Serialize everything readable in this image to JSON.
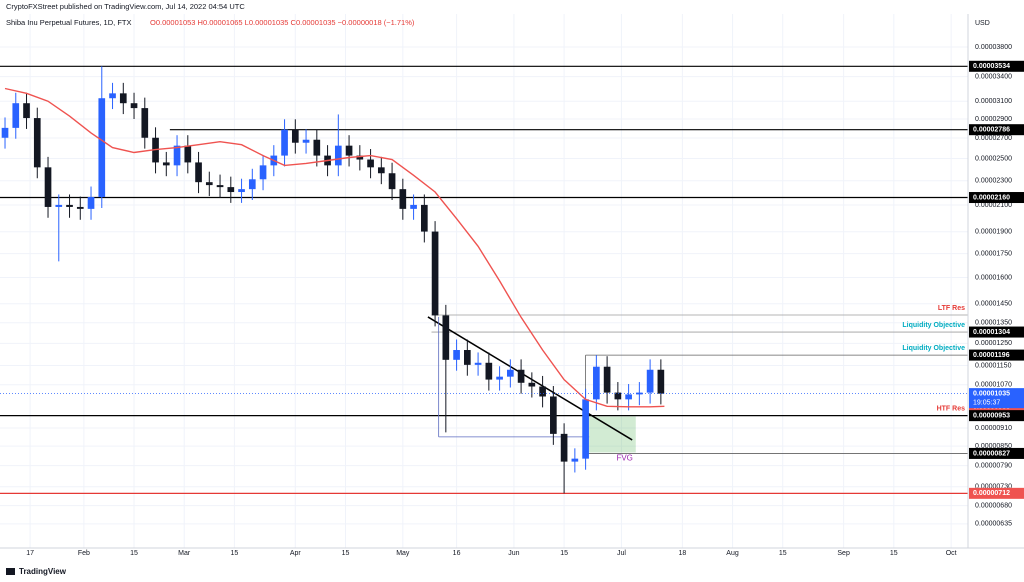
{
  "header": {
    "publisher": "CryptoFXStreet published on TradingView.com, Jul 14, 2022 04:54 UTC",
    "symbol": "Shiba Inu Perpetual Futures, 1D, FTX",
    "ohlc": "O0.00001053 H0.00001065 L0.00001035 C0.00001035 −0.00000018 (−1.71%)",
    "currency": "USD"
  },
  "footer": {
    "brand": "TradingView"
  },
  "chart_data": {
    "type": "candlestick",
    "log_scale": true,
    "grid": true,
    "up_color": "#2962ff",
    "down_color": "#131722",
    "xlim": [
      8.6,
      278.7
    ],
    "xticks": [
      17,
      {
        "value": 32,
        "label": "Feb"
      },
      {
        "value": 46,
        "label": "15"
      },
      {
        "value": 60,
        "label": "Mar"
      },
      {
        "value": 74,
        "label": "15"
      },
      {
        "value": 91,
        "label": "Apr"
      },
      {
        "value": 105,
        "label": "15"
      },
      {
        "value": 121,
        "label": "May"
      },
      {
        "value": 136,
        "label": "16"
      },
      {
        "value": 152,
        "label": "Jun"
      },
      {
        "value": 166,
        "label": "15"
      },
      {
        "value": 182,
        "label": "Jul"
      },
      {
        "value": 199,
        "label": "18"
      },
      {
        "value": 213,
        "label": "Aug"
      },
      {
        "value": 227,
        "label": "15"
      },
      {
        "value": 244,
        "label": "Sep"
      },
      {
        "value": 258,
        "label": "15"
      },
      {
        "value": 274,
        "label": "Oct"
      }
    ],
    "ylim": [
      5.8e-06,
      4.3e-05
    ],
    "yticks": [
      {
        "value": 3.8e-05,
        "label": "0.00003800"
      },
      {
        "value": 3.4e-05,
        "label": "0.00003400"
      },
      {
        "value": 3.1e-05,
        "label": "0.00003100"
      },
      {
        "value": 2.9e-05,
        "label": "0.00002900"
      },
      {
        "value": 2.7e-05,
        "label": "0.00002700"
      },
      {
        "value": 2.5e-05,
        "label": "0.00002500"
      },
      {
        "value": 2.3e-05,
        "label": "0.00002300"
      },
      {
        "value": 2.1e-05,
        "label": "0.00002100"
      },
      {
        "value": 1.9e-05,
        "label": "0.00001900"
      },
      {
        "value": 1.75e-05,
        "label": "0.00001750"
      },
      {
        "value": 1.6e-05,
        "label": "0.00001600"
      },
      {
        "value": 1.45e-05,
        "label": "0.00001450"
      },
      {
        "value": 1.35e-05,
        "label": "0.00001350"
      },
      {
        "value": 1.25e-05,
        "label": "0.00001250"
      },
      {
        "value": 1.15e-05,
        "label": "0.00001150"
      },
      {
        "value": 1.07e-05,
        "label": "0.00001070"
      },
      {
        "value": 9.1e-06,
        "label": "0.00000910"
      },
      {
        "value": 8.5e-06,
        "label": "0.00000850"
      },
      {
        "value": 7.9e-06,
        "label": "0.00000790"
      },
      {
        "value": 7.3e-06,
        "label": "0.00000730"
      },
      {
        "value": 6.8e-06,
        "label": "0.00000680"
      },
      {
        "value": 6.35e-06,
        "label": "0.00000635"
      }
    ],
    "candles": {
      "x": [
        10,
        13,
        16,
        19,
        22,
        25,
        28,
        31,
        34,
        37,
        40,
        43,
        46,
        49,
        52,
        55,
        58,
        61,
        64,
        67,
        70,
        73,
        76,
        79,
        82,
        85,
        88,
        91,
        94,
        97,
        100,
        103,
        106,
        109,
        112,
        115,
        118,
        121,
        124,
        127,
        130,
        133,
        136,
        139,
        142,
        145,
        148,
        151,
        154,
        157,
        160,
        163,
        166,
        169,
        172,
        175,
        178,
        181,
        184,
        187,
        190,
        193
      ],
      "open": [
        2.703e-05,
        2.805e-05,
        3.077e-05,
        2.91e-05,
        2.419e-05,
        2.085e-05,
        2.101e-05,
        2.085e-05,
        2.07e-05,
        2.164e-05,
        3.135e-05,
        3.193e-05,
        3.077e-05,
        3.021e-05,
        2.703e-05,
        2.464e-05,
        2.437e-05,
        2.624e-05,
        2.464e-05,
        2.288e-05,
        2.263e-05,
        2.246e-05,
        2.205e-05,
        2.229e-05,
        2.313e-05,
        2.437e-05,
        2.528e-05,
        2.786e-05,
        2.653e-05,
        2.683e-05,
        2.528e-05,
        2.437e-05,
        2.624e-05,
        2.528e-05,
        2.491e-05,
        2.419e-05,
        2.366e-05,
        2.229e-05,
        2.07e-05,
        2.101e-05,
        1.901e-05,
        1.388e-05,
        1.175e-05,
        1.219e-05,
        1.153e-05,
        1.162e-05,
        1.091e-05,
        1.103e-05,
        1.132e-05,
        1.078e-05,
        1.063e-05,
        1.024e-05,
        8.9e-06,
        8.02e-06,
        8.11e-06,
        1.013e-05,
        1.145e-05,
        1.039e-05,
        1.013e-05,
        1.032e-05,
        1.039e-05,
        1.132e-05
      ],
      "high": [
        2.917e-05,
        3.2e-05,
        3.2e-05,
        3.026e-05,
        2.516e-05,
        2.185e-05,
        2.185e-05,
        2.168e-05,
        2.251e-05,
        3.534e-05,
        3.321e-05,
        3.321e-05,
        3.2e-05,
        3.142e-05,
        2.811e-05,
        2.563e-05,
        2.729e-05,
        2.729e-05,
        2.563e-05,
        2.38e-05,
        2.354e-05,
        2.336e-05,
        2.318e-05,
        2.406e-05,
        2.534e-05,
        2.629e-05,
        2.897e-05,
        2.897e-05,
        2.79e-05,
        2.79e-05,
        2.629e-05,
        2.95e-05,
        2.729e-05,
        2.629e-05,
        2.591e-05,
        2.516e-05,
        2.461e-05,
        2.318e-05,
        2.185e-05,
        2.185e-05,
        1.977e-05,
        1.444e-05,
        1.268e-05,
        1.268e-05,
        1.208e-05,
        1.208e-05,
        1.147e-05,
        1.177e-05,
        1.177e-05,
        1.121e-05,
        1.106e-05,
        1.065e-05,
        9.26e-06,
        8.43e-06,
        1.054e-05,
        1.196e-05,
        1.191e-05,
        1.081e-05,
        1.073e-05,
        1.081e-05,
        1.177e-05,
        1.177e-05
      ],
      "low": [
        2.595e-05,
        2.693e-05,
        2.794e-05,
        2.322e-05,
        2.002e-05,
        1.7e-05,
        2.002e-05,
        1.987e-05,
        1.987e-05,
        2.077e-05,
        3.01e-05,
        2.954e-05,
        2.9e-05,
        2.595e-05,
        2.365e-05,
        2.34e-05,
        2.34e-05,
        2.365e-05,
        2.196e-05,
        2.172e-05,
        2.156e-05,
        2.117e-05,
        2.117e-05,
        2.14e-05,
        2.22e-05,
        2.34e-05,
        2.427e-05,
        2.547e-05,
        2.547e-05,
        2.427e-05,
        2.34e-05,
        2.34e-05,
        2.427e-05,
        2.391e-05,
        2.322e-05,
        2.271e-05,
        2.14e-05,
        1.987e-05,
        1.987e-05,
        1.825e-05,
        1.332e-05,
        8.95e-06,
        1.128e-05,
        1.107e-05,
        1.107e-05,
        1.047e-05,
        1.047e-05,
        1.059e-05,
        1.035e-05,
        1.02e-05,
        9.83e-06,
        8.54e-06,
        7.12e-06,
        7.7e-06,
        7.78e-06,
        9.72e-06,
        9.97e-06,
        9.72e-06,
        9.72e-06,
        9.91e-06,
        9.97e-06,
        9.94e-06
      ],
      "close": [
        2.805e-05,
        3.077e-05,
        2.91e-05,
        2.419e-05,
        2.085e-05,
        2.101e-05,
        2.085e-05,
        2.07e-05,
        2.164e-05,
        3.135e-05,
        3.193e-05,
        3.077e-05,
        3.021e-05,
        2.703e-05,
        2.464e-05,
        2.437e-05,
        2.624e-05,
        2.464e-05,
        2.288e-05,
        2.263e-05,
        2.246e-05,
        2.205e-05,
        2.229e-05,
        2.313e-05,
        2.437e-05,
        2.528e-05,
        2.786e-05,
        2.653e-05,
        2.683e-05,
        2.528e-05,
        2.437e-05,
        2.624e-05,
        2.528e-05,
        2.491e-05,
        2.419e-05,
        2.366e-05,
        2.229e-05,
        2.07e-05,
        2.101e-05,
        1.901e-05,
        1.388e-05,
        1.175e-05,
        1.219e-05,
        1.153e-05,
        1.162e-05,
        1.091e-05,
        1.103e-05,
        1.132e-05,
        1.078e-05,
        1.063e-05,
        1.024e-05,
        8.9e-06,
        8.02e-06,
        8.11e-06,
        1.013e-05,
        1.145e-05,
        1.039e-05,
        1.013e-05,
        1.032e-05,
        1.039e-05,
        1.132e-05,
        1.035e-05
      ]
    },
    "ma": {
      "color": "#ef5350",
      "x": [
        10,
        16,
        22,
        28,
        34,
        40,
        46,
        52,
        58,
        64,
        70,
        76,
        82,
        88,
        94,
        100,
        106,
        112,
        118,
        124,
        130,
        136,
        142,
        148,
        154,
        160,
        166,
        172,
        178,
        184,
        190,
        194
      ],
      "values": [
        3.252e-05,
        3.193e-05,
        3.1e-05,
        2.932e-05,
        2.753e-05,
        2.605e-05,
        2.557e-05,
        2.585e-05,
        2.605e-05,
        2.633e-05,
        2.663e-05,
        2.633e-05,
        2.528e-05,
        2.437e-05,
        2.455e-05,
        2.482e-05,
        2.51e-05,
        2.528e-05,
        2.491e-05,
        2.348e-05,
        2.205e-05,
        1.995e-05,
        1.799e-05,
        1.58e-05,
        1.378e-05,
        1.219e-05,
        1.091e-05,
        1.013e-05,
        9.87e-06,
        9.85e-06,
        9.85e-06,
        9.87e-06
      ]
    },
    "levels": [
      {
        "value": 3.534e-05,
        "from": 8.6,
        "color": "#000000",
        "box": "#000000"
      },
      {
        "value": 2.786e-05,
        "from": 56,
        "color": "#000000",
        "box": "#000000"
      },
      {
        "value": 2.16e-05,
        "label": "0.00002160",
        "from": 8.6,
        "color": "#000000",
        "box": "#000000"
      },
      {
        "value": 1.39e-05,
        "from": 129,
        "color": "#9e9e9e",
        "note": "LTF Res",
        "note_color": "#e53935"
      },
      {
        "value": 1.304e-05,
        "from": 129,
        "color": "#9e9e9e",
        "box": "#000000",
        "note": "Liquidity Objective",
        "note_color": "#00acc1"
      },
      {
        "value": 1.196e-05,
        "from": 172,
        "color": "#616161",
        "box": "#000000",
        "note": "Liquidity Objective",
        "note_color": "#00acc1"
      },
      {
        "value": 9.85e-06,
        "color": "#ef5350",
        "box": "#ef5350"
      },
      {
        "value": 9.53e-06,
        "from": 8.6,
        "color": "#000000",
        "box": "#000000",
        "note": "HTF Res",
        "note_color": "#e53935"
      },
      {
        "value": 8.27e-06,
        "from": 172,
        "color": "#616161",
        "box": "#000000"
      },
      {
        "value": 7.12e-06,
        "from": 8.6,
        "color": "#e53935",
        "box": "#ef5350"
      }
    ],
    "price_line": {
      "value": 1.035e-05,
      "color": "#2962ff",
      "countdown": "19:05:37"
    },
    "zones": [
      {
        "label": "FVG",
        "from": 172,
        "to": 186,
        "top": 9.5e-06,
        "bottom": 8.3e-06,
        "color": "#4caf50",
        "label_color": "#9c27b0"
      }
    ],
    "lines": [
      {
        "from": [
          128,
          1.38e-05
        ],
        "to": [
          185,
          8.7e-06
        ],
        "color": "#000000",
        "width": 1.5
      },
      {
        "from": [
          131,
          1.38e-05
        ],
        "to": [
          131,
          8.8e-06
        ],
        "color": "#5c6bc0",
        "width": 0.8
      },
      {
        "from": [
          131,
          8.8e-06
        ],
        "to": [
          173,
          8.8e-06
        ],
        "color": "#5c6bc0",
        "width": 0.8
      },
      {
        "from": [
          172,
          1.196e-05
        ],
        "to": [
          172,
          8.3e-06
        ],
        "color": "#616161",
        "width": 0.8
      }
    ]
  }
}
